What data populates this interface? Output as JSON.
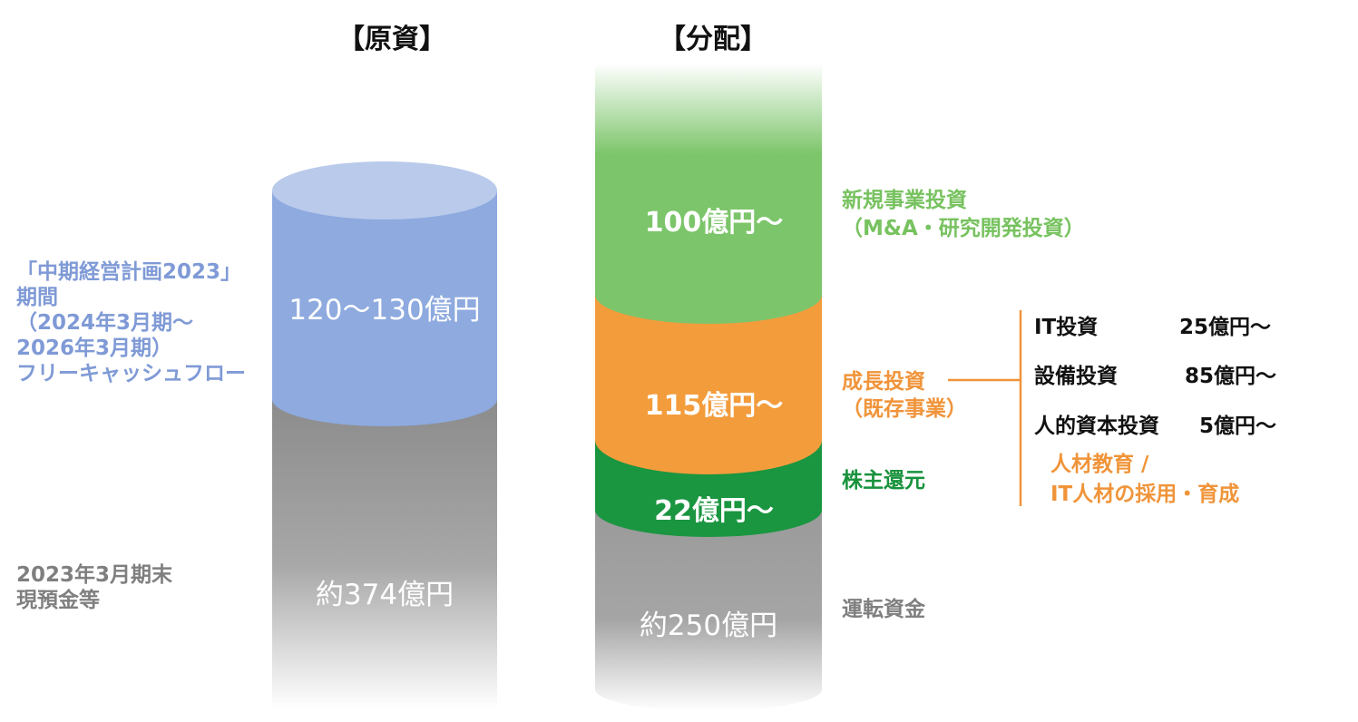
{
  "headings": {
    "source": "【原資】",
    "allocation": "【分配】"
  },
  "source": {
    "fcf_label_lines": [
      "「中期経営計画2023」",
      "期間",
      "（2024年3月期～",
      "2026年3月期）",
      "フリーキャッシュフロー"
    ],
    "fcf_value": "120～130億円",
    "cash_label_lines": [
      "2023年3月期末",
      "現預金等"
    ],
    "cash_value": "約374億円"
  },
  "allocation": {
    "new_business": {
      "value": "100億円～",
      "label_lines": [
        "新規事業投資",
        "（M&A・研究開発投資）"
      ]
    },
    "growth": {
      "value": "115億円～",
      "label_lines": [
        "成長投資",
        "（既存事業）"
      ]
    },
    "shareholder": {
      "value": "22億円～",
      "label": "株主還元"
    },
    "working_capital": {
      "value": "約250億円",
      "label": "運転資金"
    }
  },
  "growth_breakdown": [
    {
      "name": "IT投資",
      "value": "25億円～"
    },
    {
      "name": "設備投資",
      "value": "85億円～"
    },
    {
      "name": "人的資本投資",
      "value": "5億円～"
    }
  ],
  "human_capital_note_lines": [
    "人材教育 /",
    "IT人材の採用・育成"
  ],
  "colors": {
    "blue": "#8eaadf",
    "blue_top": "#b9caeb",
    "green": "#7cc56a",
    "orange": "#f39c3c",
    "dark_green": "#1a9540",
    "gray": "#8a8a8a"
  }
}
